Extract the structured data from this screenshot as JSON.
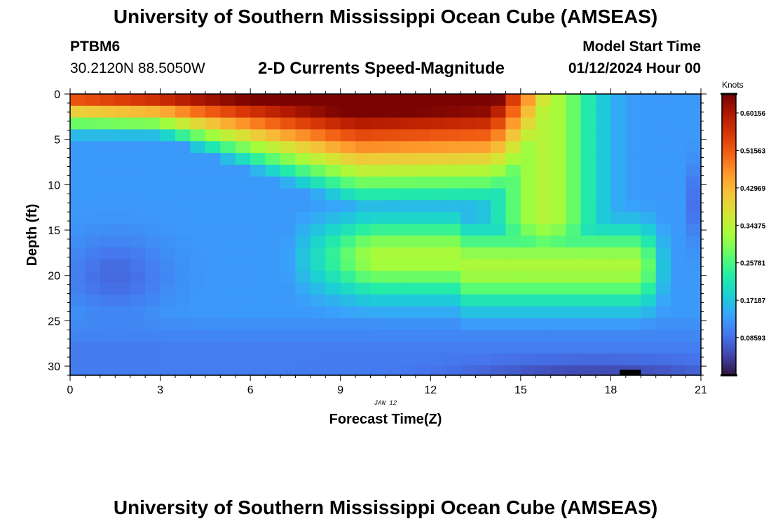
{
  "page": {
    "title": "University of Southern Mississippi Ocean Cube (AMSEAS)",
    "station_id": "PTBM6",
    "station_coords": "30.2120N  88.5050W",
    "model_start_label": "Model Start Time",
    "model_start_value": "01/12/2024 Hour 00",
    "bottom_title": "University of Southern Mississippi Ocean Cube (AMSEAS)"
  },
  "chart_data": {
    "type": "heatmap",
    "title": "2-D Currents Speed-Magnitude",
    "xlabel": "Forecast Time(Z)",
    "ylabel": "Depth (ft)",
    "date_label": "JAN 12",
    "xlim": [
      0,
      21
    ],
    "ylim": [
      0,
      31
    ],
    "x_ticks": [
      "0",
      "3",
      "6",
      "9",
      "12",
      "15",
      "18",
      "21"
    ],
    "y_ticks": [
      "0",
      "5",
      "10",
      "15",
      "20",
      "25",
      "30"
    ],
    "x_tick_values": [
      0,
      3,
      6,
      9,
      12,
      15,
      18,
      21
    ],
    "y_tick_values": [
      0,
      5,
      10,
      15,
      20,
      25,
      30
    ],
    "colorbar": {
      "label": "Knots",
      "min": 0.0,
      "max": 0.645,
      "tick_labels": [
        "0.60156",
        "0.51563",
        "0.42969",
        "0.34375",
        "0.25781",
        "0.17187",
        "0.08593"
      ],
      "tick_values": [
        0.60156,
        0.51563,
        0.42969,
        0.34375,
        0.25781,
        0.17187,
        0.08593
      ],
      "colors": [
        "#30123b",
        "#4145ab",
        "#4675ed",
        "#39a2fc",
        "#1bcfd4",
        "#24eca6",
        "#61fc6c",
        "#a4fc3b",
        "#d1e834",
        "#f3c63a",
        "#fe9b2d",
        "#f36315",
        "#d93806",
        "#b11901",
        "#7a0402"
      ]
    },
    "grid": {
      "nx": 42,
      "ny": 24,
      "x_step_hours": 0.5,
      "y_step_ft": 1.3,
      "note": "speed field (knots) sampled on a 0.5 h x 1.3 ft grid, approximated from the figure"
    }
  }
}
